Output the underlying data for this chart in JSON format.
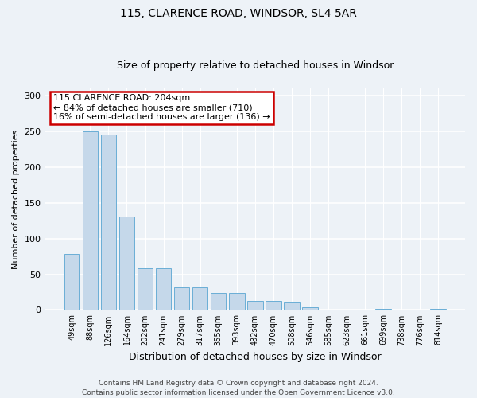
{
  "title1": "115, CLARENCE ROAD, WINDSOR, SL4 5AR",
  "title2": "Size of property relative to detached houses in Windsor",
  "xlabel": "Distribution of detached houses by size in Windsor",
  "ylabel": "Number of detached properties",
  "categories": [
    "49sqm",
    "88sqm",
    "126sqm",
    "164sqm",
    "202sqm",
    "241sqm",
    "279sqm",
    "317sqm",
    "355sqm",
    "393sqm",
    "432sqm",
    "470sqm",
    "508sqm",
    "546sqm",
    "585sqm",
    "623sqm",
    "661sqm",
    "699sqm",
    "738sqm",
    "776sqm",
    "814sqm"
  ],
  "values": [
    79,
    250,
    246,
    131,
    59,
    59,
    32,
    32,
    24,
    24,
    13,
    13,
    11,
    4,
    0,
    0,
    0,
    2,
    0,
    0,
    2
  ],
  "bar_color": "#c5d8ea",
  "bar_edge_color": "#6aaed6",
  "ylim": [
    0,
    310
  ],
  "yticks": [
    0,
    50,
    100,
    150,
    200,
    250,
    300
  ],
  "annotation_title": "115 CLARENCE ROAD: 204sqm",
  "annotation_line2": "← 84% of detached houses are smaller (710)",
  "annotation_line3": "16% of semi-detached houses are larger (136) →",
  "annotation_box_facecolor": "#ffffff",
  "annotation_box_edgecolor": "#cc0000",
  "footer_line1": "Contains HM Land Registry data © Crown copyright and database right 2024.",
  "footer_line2": "Contains public sector information licensed under the Open Government Licence v3.0.",
  "background_color": "#edf2f7",
  "grid_color": "#ffffff",
  "title_fontsize": 10,
  "subtitle_fontsize": 9,
  "ylabel_fontsize": 8,
  "xlabel_fontsize": 9,
  "tick_fontsize": 8,
  "xtick_fontsize": 7,
  "annotation_fontsize": 8,
  "footer_fontsize": 6.5
}
